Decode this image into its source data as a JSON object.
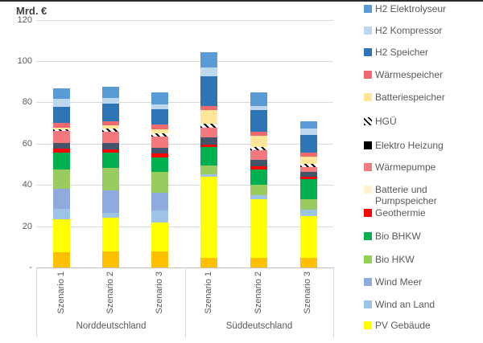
{
  "page": {
    "background": "#ffffff",
    "top_bar_color": "#2b2b2b"
  },
  "chart_data": {
    "type": "bar",
    "stacked": true,
    "title": "Mrd. €",
    "ylim": [
      0,
      120
    ],
    "grid": true,
    "y_ticks": [
      {
        "label": "120",
        "value": 120
      },
      {
        "label": "100",
        "value": 100
      },
      {
        "label": "80",
        "value": 80
      },
      {
        "label": "60",
        "value": 60
      },
      {
        "label": "40",
        "value": 40
      },
      {
        "label": "20",
        "value": 20
      },
      {
        "label": "-",
        "value": 0
      }
    ],
    "groups": [
      {
        "label": "Norddeutschland",
        "categories": [
          "Szenario 1",
          "Szenario 2",
          "Szenario 3"
        ]
      },
      {
        "label": "Süddeutschland",
        "categories": [
          "Szenario 1",
          "Szenario 2",
          "Szenario 3"
        ]
      }
    ],
    "series": [
      {
        "name": "",
        "color": "#FFC000",
        "values": [
          7.5,
          7.9,
          7.7,
          4.5,
          4.8,
          4.5
        ]
      },
      {
        "name": "PV Gebäude",
        "color": "#FFFF00",
        "values": [
          15.7,
          16.2,
          14.0,
          39.6,
          28.1,
          20.3
        ]
      },
      {
        "name": "Wind an Land",
        "color": "#9DC3E6",
        "values": [
          5.2,
          2.3,
          5.8,
          1.0,
          2.2,
          3.3
        ]
      },
      {
        "name": "Wind Meer",
        "color": "#8FAADC",
        "values": [
          9.6,
          11.0,
          8.7,
          0,
          0,
          0
        ]
      },
      {
        "name": "Bio HKW",
        "color": "#99CB5E",
        "values": [
          9.6,
          11.0,
          10.0,
          4.5,
          4.9,
          4.8
        ]
      },
      {
        "name": "Bio BHKW",
        "color": "#00B050",
        "values": [
          8.1,
          7.3,
          7.2,
          8.8,
          7.5,
          10.0
        ]
      },
      {
        "name": "Geothermie",
        "color": "#FF0000",
        "values": [
          1.9,
          1.5,
          1.9,
          1.2,
          1.5,
          1.2
        ]
      },
      {
        "name": "Elektro Heizung",
        "color": "#44546A",
        "values": [
          2.7,
          3.1,
          2.7,
          3.3,
          3.2,
          2.2
        ]
      },
      {
        "name": "Wärmepumpe",
        "color": "#F4797E",
        "values": [
          5.8,
          5.5,
          5.4,
          4.8,
          4.5,
          2.4
        ]
      },
      {
        "name": "Batterie und Pumpspeicher",
        "color": "#FFF2CC",
        "values": [
          0,
          0,
          0,
          0,
          0,
          0
        ]
      },
      {
        "name": "HGÜ",
        "color": "#FFFFFF",
        "hatch": true,
        "values": [
          0.8,
          1.5,
          1.5,
          1.9,
          1.7,
          1.6
        ]
      },
      {
        "name": "Batteriespeicher",
        "color": "#FFE699",
        "values": [
          0.8,
          1.6,
          2.0,
          6.7,
          5.4,
          3.5
        ]
      },
      {
        "name": "Wärmespeicher",
        "color": "#F0696F",
        "values": [
          2.4,
          2.0,
          2.3,
          2.1,
          2.0,
          1.9
        ]
      },
      {
        "name": "H2 Speicher",
        "color": "#2E75B6",
        "values": [
          7.9,
          8.4,
          7.4,
          14.4,
          10.4,
          8.5
        ]
      },
      {
        "name": "H2 Kompressor",
        "color": "#BDD7EE",
        "values": [
          3.9,
          2.7,
          2.3,
          3.9,
          1.9,
          3.1
        ]
      },
      {
        "name": "H2 Elektrolyseur",
        "color": "#5B9BD5",
        "values": [
          4.9,
          5.6,
          5.9,
          7.7,
          6.6,
          3.5
        ]
      }
    ],
    "legend": {
      "position": "right",
      "items": [
        {
          "label": "H2 Elektrolyseur",
          "color": "#5B9BD5"
        },
        {
          "label": "H2 Kompressor",
          "color": "#BDD7EE"
        },
        {
          "label": "H2 Speicher",
          "color": "#2E75B6"
        },
        {
          "label": "Wärmespeicher",
          "color": "#F0696F"
        },
        {
          "label": "Batteriespeicher",
          "color": "#FFE699"
        },
        {
          "label": "HGÜ",
          "color": "#FFFFFF",
          "hatch": true
        },
        {
          "label": "Elektro Heizung",
          "color": "#000000"
        },
        {
          "label": "Wärmepumpe",
          "color": "#F4797E"
        },
        {
          "label": "Batterie und Pumpspeicher",
          "color": "#FFF2CC"
        },
        {
          "label": "Geothermie",
          "color": "#FF0000"
        },
        {
          "label": "Bio BHKW",
          "color": "#00B050"
        },
        {
          "label": "Bio HKW",
          "color": "#92D050"
        },
        {
          "label": "Wind Meer",
          "color": "#8FAADC"
        },
        {
          "label": "Wind an Land",
          "color": "#9DC3E6"
        },
        {
          "label": "PV Gebäude",
          "color": "#FFFF00"
        }
      ]
    }
  }
}
